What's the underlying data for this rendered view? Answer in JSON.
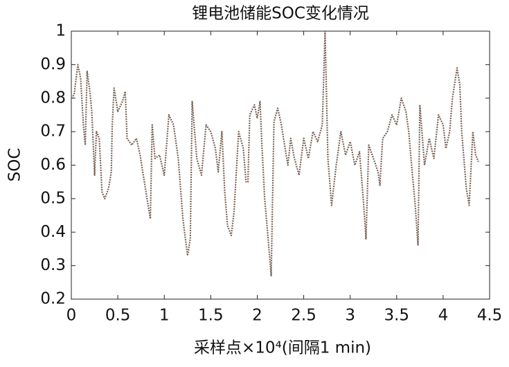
{
  "chart_data": {
    "type": "line",
    "title": "锂电池储能SOC变化情况",
    "xlabel": "采样点×10⁴(间隔1 min)",
    "ylabel": "SOC",
    "color": "#7a6458",
    "x": [
      0,
      0.03,
      0.07,
      0.1,
      0.13,
      0.15,
      0.17,
      0.2,
      0.22,
      0.25,
      0.27,
      0.3,
      0.33,
      0.36,
      0.4,
      0.43,
      0.44,
      0.46,
      0.5,
      0.55,
      0.58,
      0.6,
      0.65,
      0.7,
      0.74,
      0.78,
      0.82,
      0.85,
      0.87,
      0.9,
      0.95,
      1.0,
      1.05,
      1.1,
      1.15,
      1.2,
      1.25,
      1.28,
      1.3,
      1.35,
      1.4,
      1.45,
      1.5,
      1.55,
      1.58,
      1.62,
      1.65,
      1.68,
      1.72,
      1.75,
      1.8,
      1.85,
      1.88,
      1.9,
      1.92,
      1.97,
      2.0,
      2.03,
      2.05,
      2.08,
      2.12,
      2.15,
      2.18,
      2.22,
      2.26,
      2.3,
      2.33,
      2.36,
      2.4,
      2.45,
      2.5,
      2.55,
      2.6,
      2.65,
      2.7,
      2.73,
      2.76,
      2.8,
      2.85,
      2.9,
      2.95,
      3.0,
      3.05,
      3.1,
      3.14,
      3.17,
      3.2,
      3.25,
      3.3,
      3.32,
      3.35,
      3.4,
      3.45,
      3.5,
      3.55,
      3.6,
      3.63,
      3.66,
      3.7,
      3.73,
      3.75,
      3.8,
      3.85,
      3.9,
      3.95,
      4.0,
      4.03,
      4.07,
      4.1,
      4.15,
      4.18,
      4.2,
      4.25,
      4.28,
      4.32,
      4.35,
      4.38
    ],
    "values": [
      0.8,
      0.81,
      0.9,
      0.86,
      0.72,
      0.66,
      0.88,
      0.82,
      0.76,
      0.57,
      0.7,
      0.68,
      0.52,
      0.5,
      0.53,
      0.58,
      0.72,
      0.83,
      0.76,
      0.79,
      0.82,
      0.68,
      0.66,
      0.68,
      0.63,
      0.56,
      0.49,
      0.44,
      0.72,
      0.62,
      0.63,
      0.57,
      0.75,
      0.72,
      0.62,
      0.44,
      0.33,
      0.38,
      0.79,
      0.62,
      0.57,
      0.72,
      0.7,
      0.65,
      0.58,
      0.7,
      0.52,
      0.42,
      0.39,
      0.46,
      0.7,
      0.65,
      0.55,
      0.55,
      0.75,
      0.78,
      0.74,
      0.79,
      0.66,
      0.5,
      0.37,
      0.27,
      0.73,
      0.77,
      0.72,
      0.65,
      0.6,
      0.68,
      0.62,
      0.57,
      0.68,
      0.62,
      0.7,
      0.67,
      0.72,
      1.0,
      0.62,
      0.48,
      0.6,
      0.7,
      0.63,
      0.67,
      0.6,
      0.64,
      0.5,
      0.38,
      0.66,
      0.62,
      0.58,
      0.54,
      0.68,
      0.7,
      0.75,
      0.72,
      0.8,
      0.76,
      0.7,
      0.6,
      0.48,
      0.36,
      0.78,
      0.6,
      0.68,
      0.62,
      0.75,
      0.72,
      0.65,
      0.7,
      0.8,
      0.89,
      0.84,
      0.7,
      0.53,
      0.48,
      0.7,
      0.63,
      0.61
    ],
    "xlim": [
      0,
      4.5
    ],
    "xticks": [
      0,
      0.5,
      1,
      1.5,
      2,
      2.5,
      3,
      3.5,
      4,
      4.5
    ],
    "ylim": [
      0.2,
      1
    ],
    "yticks": [
      0.2,
      0.3,
      0.4,
      0.5,
      0.6,
      0.7,
      0.8,
      0.9,
      1
    ],
    "grid": false
  }
}
